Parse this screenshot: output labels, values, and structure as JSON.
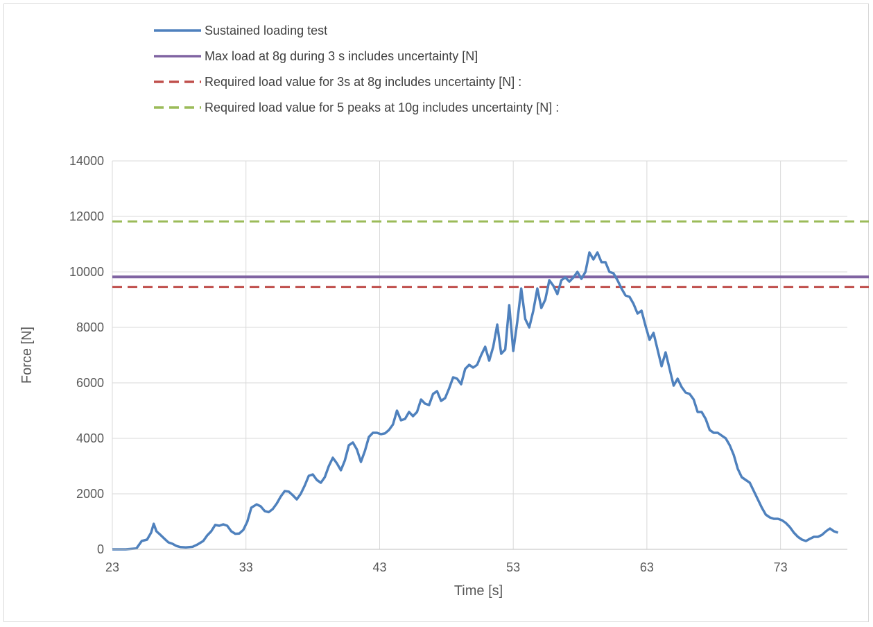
{
  "chart_data": {
    "type": "line",
    "title": "",
    "xlabel": "Time [s]",
    "ylabel": "Force [N]",
    "xlim": [
      23,
      78
    ],
    "ylim": [
      0,
      14000
    ],
    "x_ticks": [
      23,
      33,
      43,
      53,
      63,
      73
    ],
    "y_ticks": [
      0,
      2000,
      4000,
      6000,
      8000,
      10000,
      12000,
      14000
    ],
    "grid": true,
    "legend_position": "top",
    "series": [
      {
        "name": "Sustained loading test",
        "color": "#4f81bd",
        "style": "solid",
        "points": [
          [
            23.0,
            0
          ],
          [
            24.0,
            0
          ],
          [
            24.8,
            30
          ],
          [
            25.2,
            300
          ],
          [
            25.6,
            350
          ],
          [
            25.9,
            600
          ],
          [
            26.1,
            920
          ],
          [
            26.3,
            650
          ],
          [
            26.6,
            520
          ],
          [
            26.9,
            380
          ],
          [
            27.2,
            250
          ],
          [
            27.5,
            200
          ],
          [
            27.8,
            120
          ],
          [
            28.1,
            80
          ],
          [
            28.5,
            70
          ],
          [
            29.0,
            90
          ],
          [
            29.4,
            180
          ],
          [
            29.8,
            300
          ],
          [
            30.1,
            500
          ],
          [
            30.4,
            650
          ],
          [
            30.7,
            880
          ],
          [
            31.0,
            850
          ],
          [
            31.3,
            900
          ],
          [
            31.6,
            850
          ],
          [
            31.9,
            650
          ],
          [
            32.2,
            560
          ],
          [
            32.5,
            570
          ],
          [
            32.8,
            700
          ],
          [
            33.1,
            1000
          ],
          [
            33.4,
            1500
          ],
          [
            33.8,
            1620
          ],
          [
            34.1,
            1550
          ],
          [
            34.4,
            1380
          ],
          [
            34.7,
            1340
          ],
          [
            35.0,
            1450
          ],
          [
            35.3,
            1650
          ],
          [
            35.6,
            1900
          ],
          [
            35.9,
            2100
          ],
          [
            36.2,
            2080
          ],
          [
            36.5,
            1950
          ],
          [
            36.8,
            1800
          ],
          [
            37.1,
            2000
          ],
          [
            37.4,
            2300
          ],
          [
            37.7,
            2650
          ],
          [
            38.0,
            2700
          ],
          [
            38.3,
            2500
          ],
          [
            38.6,
            2400
          ],
          [
            38.9,
            2600
          ],
          [
            39.2,
            3000
          ],
          [
            39.5,
            3300
          ],
          [
            39.8,
            3100
          ],
          [
            40.1,
            2850
          ],
          [
            40.4,
            3200
          ],
          [
            40.7,
            3750
          ],
          [
            41.0,
            3850
          ],
          [
            41.3,
            3600
          ],
          [
            41.6,
            3150
          ],
          [
            41.9,
            3550
          ],
          [
            42.2,
            4050
          ],
          [
            42.5,
            4200
          ],
          [
            42.8,
            4200
          ],
          [
            43.1,
            4150
          ],
          [
            43.4,
            4180
          ],
          [
            43.7,
            4300
          ],
          [
            44.0,
            4500
          ],
          [
            44.3,
            5000
          ],
          [
            44.6,
            4650
          ],
          [
            44.9,
            4700
          ],
          [
            45.2,
            4950
          ],
          [
            45.5,
            4800
          ],
          [
            45.8,
            4950
          ],
          [
            46.1,
            5400
          ],
          [
            46.4,
            5250
          ],
          [
            46.7,
            5200
          ],
          [
            47.0,
            5600
          ],
          [
            47.3,
            5700
          ],
          [
            47.6,
            5350
          ],
          [
            47.9,
            5450
          ],
          [
            48.2,
            5800
          ],
          [
            48.5,
            6200
          ],
          [
            48.8,
            6150
          ],
          [
            49.1,
            5950
          ],
          [
            49.4,
            6500
          ],
          [
            49.7,
            6650
          ],
          [
            50.0,
            6550
          ],
          [
            50.3,
            6650
          ],
          [
            50.6,
            7000
          ],
          [
            50.9,
            7300
          ],
          [
            51.2,
            6800
          ],
          [
            51.5,
            7300
          ],
          [
            51.8,
            8100
          ],
          [
            52.1,
            7050
          ],
          [
            52.4,
            7200
          ],
          [
            52.7,
            8800
          ],
          [
            53.0,
            7150
          ],
          [
            53.3,
            8200
          ],
          [
            53.6,
            9400
          ],
          [
            53.9,
            8300
          ],
          [
            54.2,
            8000
          ],
          [
            54.5,
            8600
          ],
          [
            54.8,
            9400
          ],
          [
            55.1,
            8700
          ],
          [
            55.4,
            9000
          ],
          [
            55.7,
            9700
          ],
          [
            56.0,
            9500
          ],
          [
            56.3,
            9200
          ],
          [
            56.6,
            9700
          ],
          [
            56.9,
            9800
          ],
          [
            57.2,
            9650
          ],
          [
            57.5,
            9800
          ],
          [
            57.8,
            10000
          ],
          [
            58.1,
            9750
          ],
          [
            58.4,
            10000
          ],
          [
            58.7,
            10700
          ],
          [
            59.0,
            10450
          ],
          [
            59.3,
            10700
          ],
          [
            59.6,
            10350
          ],
          [
            59.9,
            10350
          ],
          [
            60.2,
            10000
          ],
          [
            60.5,
            9950
          ],
          [
            60.8,
            9700
          ],
          [
            61.1,
            9400
          ],
          [
            61.4,
            9150
          ],
          [
            61.7,
            9100
          ],
          [
            62.0,
            8850
          ],
          [
            62.3,
            8500
          ],
          [
            62.6,
            8600
          ],
          [
            62.9,
            8050
          ],
          [
            63.2,
            7550
          ],
          [
            63.5,
            7800
          ],
          [
            63.8,
            7200
          ],
          [
            64.1,
            6600
          ],
          [
            64.4,
            7100
          ],
          [
            64.7,
            6500
          ],
          [
            65.0,
            5900
          ],
          [
            65.3,
            6150
          ],
          [
            65.6,
            5850
          ],
          [
            65.9,
            5650
          ],
          [
            66.2,
            5600
          ],
          [
            66.5,
            5400
          ],
          [
            66.8,
            4950
          ],
          [
            67.1,
            4950
          ],
          [
            67.4,
            4700
          ],
          [
            67.7,
            4300
          ],
          [
            68.0,
            4200
          ],
          [
            68.3,
            4200
          ],
          [
            68.6,
            4100
          ],
          [
            68.9,
            4000
          ],
          [
            69.2,
            3750
          ],
          [
            69.5,
            3400
          ],
          [
            69.8,
            2900
          ],
          [
            70.1,
            2600
          ],
          [
            70.4,
            2500
          ],
          [
            70.7,
            2400
          ],
          [
            71.0,
            2100
          ],
          [
            71.3,
            1800
          ],
          [
            71.6,
            1500
          ],
          [
            71.9,
            1250
          ],
          [
            72.2,
            1150
          ],
          [
            72.5,
            1100
          ],
          [
            72.8,
            1100
          ],
          [
            73.1,
            1050
          ],
          [
            73.4,
            950
          ],
          [
            73.7,
            800
          ],
          [
            74.0,
            600
          ],
          [
            74.3,
            450
          ],
          [
            74.6,
            350
          ],
          [
            74.9,
            300
          ],
          [
            75.2,
            380
          ],
          [
            75.5,
            450
          ],
          [
            75.8,
            450
          ],
          [
            76.1,
            520
          ],
          [
            76.4,
            650
          ],
          [
            76.7,
            750
          ],
          [
            77.0,
            650
          ],
          [
            77.3,
            600
          ]
        ]
      },
      {
        "name": "Max load at 8g during 3 s includes uncertainty [N]",
        "color": "#8064a2",
        "style": "solid",
        "value": 9820
      },
      {
        "name": "Required load value for 3s at 8g includes uncertainty [N] :",
        "color": "#c0504d",
        "style": "dashed",
        "value": 9460
      },
      {
        "name": "Required load value for 5 peaks at 10g includes uncertainty [N] :",
        "color": "#9bbb59",
        "style": "dashed",
        "value": 11820
      }
    ]
  }
}
